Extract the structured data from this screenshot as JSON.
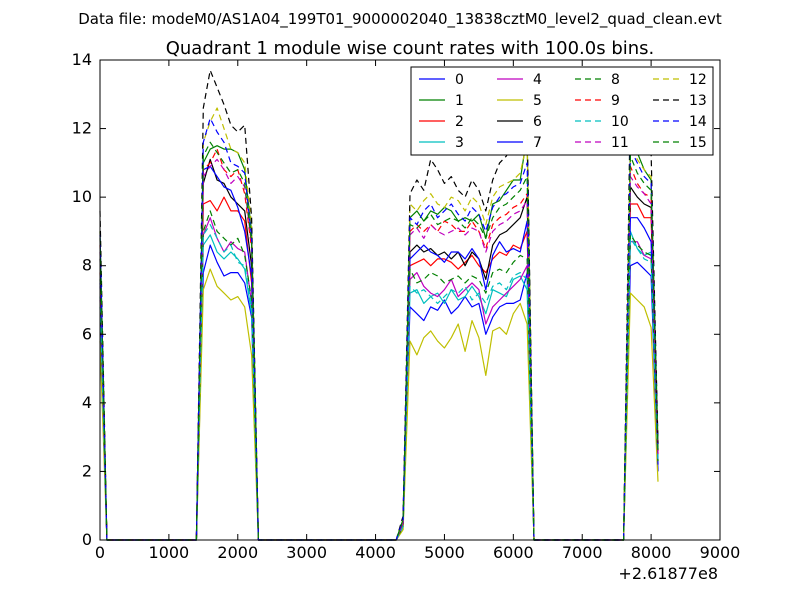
{
  "chart_data": {
    "type": "line",
    "suptitle": "Data file: modeM0/AS1A04_199T01_9000002040_13838cztM0_level2_quad_clean.evt",
    "title": "Quadrant 1 module wise count rates with 100.0s bins.",
    "xlabel": "",
    "ylabel": "",
    "x_offset_label": "+2.61877e8",
    "xlim": [
      0,
      9000
    ],
    "ylim": [
      0,
      14
    ],
    "xticks": [
      0,
      1000,
      2000,
      3000,
      4000,
      5000,
      6000,
      7000,
      8000,
      9000
    ],
    "yticks": [
      0,
      2,
      4,
      6,
      8,
      10,
      12,
      14
    ],
    "x": [
      0,
      100,
      1300,
      1400,
      1500,
      1600,
      1700,
      1800,
      1900,
      2000,
      2100,
      2200,
      2300,
      4300,
      4400,
      4500,
      4600,
      4700,
      4800,
      4900,
      5000,
      5100,
      5200,
      5300,
      5400,
      5500,
      5600,
      5700,
      5800,
      5900,
      6000,
      6100,
      6200,
      6300,
      6400,
      7500,
      7600,
      7700,
      7800,
      7900,
      8000,
      8100
    ],
    "series": [
      {
        "name": "0",
        "color": "#0000ff",
        "dash": "solid",
        "values": [
          7.5,
          0,
          0,
          0,
          7.8,
          8.6,
          8.1,
          7.7,
          7.8,
          7.8,
          7.5,
          6.5,
          0,
          0,
          0.4,
          6.8,
          6.6,
          6.4,
          6.8,
          6.7,
          7.0,
          6.6,
          6.8,
          7.1,
          6.8,
          6.9,
          6.0,
          6.5,
          6.8,
          6.9,
          6.9,
          7.0,
          7.8,
          0,
          0,
          0,
          0,
          8.0,
          8.1,
          7.9,
          7.7,
          2.0
        ]
      },
      {
        "name": "1",
        "color": "#008000",
        "dash": "solid",
        "values": [
          9.0,
          0,
          0,
          0,
          11.0,
          11.4,
          11.5,
          11.4,
          11.4,
          11.3,
          10.8,
          9.0,
          0,
          0,
          0.6,
          9.4,
          9.6,
          9.3,
          9.6,
          9.5,
          9.7,
          9.6,
          9.3,
          9.4,
          9.3,
          9.5,
          8.8,
          9.8,
          9.9,
          10.2,
          10.5,
          10.5,
          11.8,
          0,
          0,
          0,
          0,
          11.6,
          11.3,
          10.8,
          10.5,
          2.8
        ]
      },
      {
        "name": "2",
        "color": "#ff0000",
        "dash": "solid",
        "values": [
          7.8,
          0,
          0,
          0,
          9.8,
          9.9,
          9.6,
          10.0,
          9.6,
          9.6,
          9.3,
          7.5,
          0,
          0,
          0.5,
          8.0,
          8.1,
          8.2,
          8.0,
          8.2,
          8.2,
          8.1,
          7.9,
          8.1,
          8.3,
          8.0,
          7.8,
          8.2,
          8.4,
          8.3,
          8.6,
          8.5,
          9.0,
          0,
          0,
          0,
          0,
          9.8,
          9.8,
          9.4,
          9.4,
          2.5
        ]
      },
      {
        "name": "3",
        "color": "#00bfbf",
        "dash": "solid",
        "values": [
          6.8,
          0,
          0,
          0,
          8.6,
          8.9,
          8.4,
          8.2,
          8.4,
          8.2,
          7.9,
          6.6,
          0,
          0,
          0.4,
          7.2,
          7.3,
          6.9,
          7.1,
          7.2,
          6.9,
          7.3,
          7.0,
          7.1,
          7.4,
          7.1,
          6.6,
          7.3,
          7.2,
          7.1,
          7.6,
          7.7,
          7.3,
          0,
          0,
          0,
          0,
          9.0,
          8.5,
          8.3,
          8.4,
          2.3
        ]
      },
      {
        "name": "4",
        "color": "#bf00bf",
        "dash": "solid",
        "values": [
          7.0,
          0,
          0,
          0,
          8.9,
          9.4,
          8.8,
          8.4,
          8.7,
          8.5,
          8.4,
          6.9,
          0,
          0,
          0.4,
          7.6,
          7.8,
          7.4,
          7.2,
          7.1,
          7.3,
          7.6,
          7.1,
          7.3,
          7.5,
          7.3,
          6.3,
          6.8,
          7.0,
          7.2,
          7.4,
          7.6,
          8.0,
          0,
          0,
          0,
          0,
          8.7,
          8.7,
          8.3,
          8.2,
          2.4
        ]
      },
      {
        "name": "5",
        "color": "#bfbf00",
        "dash": "solid",
        "values": [
          5.8,
          0,
          0,
          0,
          7.3,
          7.9,
          7.4,
          7.2,
          7.0,
          7.1,
          6.8,
          5.4,
          0,
          0,
          0.3,
          5.8,
          5.4,
          5.9,
          6.1,
          5.8,
          5.6,
          5.9,
          6.3,
          5.5,
          6.4,
          5.9,
          4.8,
          6.1,
          6.2,
          6.0,
          6.6,
          6.9,
          6.3,
          0,
          0,
          0,
          0,
          7.2,
          7.0,
          6.8,
          6.2,
          1.7
        ]
      },
      {
        "name": "6",
        "color": "#000000",
        "dash": "solid",
        "values": [
          8.2,
          0,
          0,
          0,
          10.4,
          11.1,
          10.5,
          10.4,
          10.0,
          9.8,
          9.6,
          8.0,
          0,
          0,
          0.5,
          8.4,
          8.6,
          8.4,
          8.5,
          8.3,
          8.4,
          8.2,
          8.4,
          8.0,
          8.4,
          8.2,
          7.6,
          8.6,
          8.9,
          9.0,
          9.2,
          9.4,
          10.0,
          0,
          0,
          0,
          0,
          10.3,
          10.0,
          9.8,
          9.7,
          2.6
        ]
      },
      {
        "name": "7",
        "color": "#0000ff",
        "dash": "solid",
        "values": [
          7.4,
          0,
          0,
          0,
          10.8,
          10.9,
          10.6,
          10.3,
          10.2,
          9.7,
          9.0,
          7.7,
          0,
          0,
          0.5,
          8.2,
          8.4,
          8.6,
          8.4,
          8.3,
          8.1,
          8.4,
          8.4,
          8.2,
          8.5,
          8.2,
          7.3,
          8.3,
          8.7,
          8.4,
          8.5,
          8.4,
          9.3,
          0,
          0,
          0,
          0,
          9.4,
          9.4,
          9.1,
          8.7,
          2.2
        ]
      },
      {
        "name": "8",
        "color": "#008000",
        "dash": "dashed",
        "values": [
          7.6,
          0,
          0,
          0,
          9.0,
          9.6,
          9.0,
          8.8,
          8.6,
          8.8,
          8.3,
          7.0,
          0,
          0,
          0.4,
          7.9,
          7.5,
          7.6,
          7.8,
          7.7,
          7.5,
          7.6,
          7.7,
          7.5,
          7.7,
          7.6,
          7.2,
          7.8,
          7.9,
          7.8,
          8.1,
          8.3,
          8.2,
          0,
          0,
          0,
          0,
          8.9,
          8.6,
          8.4,
          8.3,
          2.3
        ]
      },
      {
        "name": "9",
        "color": "#ff0000",
        "dash": "dashed",
        "values": [
          8.6,
          0,
          0,
          0,
          10.8,
          11.0,
          11.4,
          10.8,
          10.6,
          10.8,
          10.1,
          8.5,
          0,
          0,
          0.5,
          9.0,
          9.2,
          9.0,
          9.2,
          9.0,
          9.3,
          9.2,
          9.0,
          9.0,
          9.3,
          9.0,
          8.5,
          9.2,
          9.4,
          9.5,
          9.7,
          9.8,
          10.1,
          0,
          0,
          0,
          0,
          10.9,
          10.4,
          10.1,
          10.0,
          2.6
        ]
      },
      {
        "name": "10",
        "color": "#00bfbf",
        "dash": "dashed",
        "values": [
          7.1,
          0,
          0,
          0,
          8.9,
          9.2,
          8.8,
          8.4,
          8.6,
          8.1,
          8.0,
          6.8,
          0,
          0,
          0.4,
          7.4,
          7.2,
          7.3,
          7.1,
          6.9,
          7.1,
          7.3,
          7.2,
          7.4,
          7.0,
          7.2,
          6.9,
          7.4,
          7.5,
          7.3,
          7.7,
          7.8,
          7.6,
          0,
          0,
          0,
          0,
          8.8,
          8.5,
          8.2,
          8.1,
          2.3
        ]
      },
      {
        "name": "11",
        "color": "#bf00bf",
        "dash": "dashed",
        "values": [
          8.4,
          0,
          0,
          0,
          10.6,
          10.9,
          11.1,
          10.8,
          10.4,
          10.6,
          10.3,
          8.6,
          0,
          0,
          0.5,
          8.9,
          9.1,
          8.8,
          9.2,
          9.0,
          8.9,
          9.0,
          9.1,
          8.9,
          9.1,
          9.0,
          8.4,
          9.0,
          9.2,
          9.3,
          9.5,
          9.6,
          9.9,
          0,
          0,
          0,
          0,
          10.6,
          10.3,
          10.1,
          9.8,
          2.5
        ]
      },
      {
        "name": "12",
        "color": "#bfbf00",
        "dash": "dashed",
        "values": [
          9.0,
          0,
          0,
          0,
          11.6,
          12.2,
          12.6,
          12.0,
          11.4,
          11.3,
          11.0,
          9.2,
          0,
          0,
          0.6,
          9.8,
          9.6,
          9.9,
          10.1,
          9.8,
          9.7,
          10.0,
          9.9,
          9.6,
          10.0,
          9.8,
          9.2,
          10.0,
          10.3,
          10.4,
          10.5,
          10.7,
          11.6,
          0,
          0,
          0,
          0,
          11.6,
          11.1,
          10.8,
          10.6,
          2.7
        ]
      },
      {
        "name": "13",
        "color": "#000000",
        "dash": "dashed",
        "values": [
          9.6,
          0,
          0,
          0,
          12.6,
          13.7,
          13.2,
          12.7,
          12.1,
          11.9,
          12.1,
          9.4,
          0,
          0,
          0.7,
          10.1,
          10.5,
          10.2,
          11.1,
          10.8,
          10.4,
          10.6,
          10.2,
          10.0,
          10.5,
          10.2,
          9.6,
          10.5,
          11.0,
          11.2,
          11.6,
          11.8,
          12.2,
          0,
          0,
          0,
          0,
          12.9,
          12.0,
          11.5,
          11.3,
          2.8
        ]
      },
      {
        "name": "14",
        "color": "#0000ff",
        "dash": "dashed",
        "values": [
          8.9,
          0,
          0,
          0,
          11.6,
          12.3,
          11.9,
          11.6,
          11.0,
          10.9,
          10.7,
          8.8,
          0,
          0,
          0.6,
          9.4,
          9.2,
          9.6,
          9.8,
          9.4,
          9.6,
          9.8,
          9.5,
          9.3,
          9.7,
          9.5,
          9.0,
          9.7,
          10.0,
          10.1,
          10.3,
          10.4,
          11.0,
          0,
          0,
          0,
          0,
          11.4,
          11.0,
          10.6,
          10.4,
          2.6
        ]
      },
      {
        "name": "15",
        "color": "#008000",
        "dash": "dashed",
        "values": [
          8.8,
          0,
          0,
          0,
          11.2,
          11.6,
          11.3,
          11.0,
          10.7,
          10.8,
          10.4,
          8.7,
          0,
          0,
          0.6,
          9.2,
          9.1,
          9.3,
          9.5,
          9.2,
          9.3,
          9.4,
          9.3,
          9.1,
          9.4,
          9.2,
          8.8,
          9.4,
          9.7,
          9.8,
          10.0,
          10.2,
          10.6,
          0,
          0,
          0,
          0,
          11.2,
          10.7,
          10.4,
          10.2,
          2.6
        ]
      }
    ],
    "legend": {
      "location": "upper right",
      "columns": 4
    }
  }
}
